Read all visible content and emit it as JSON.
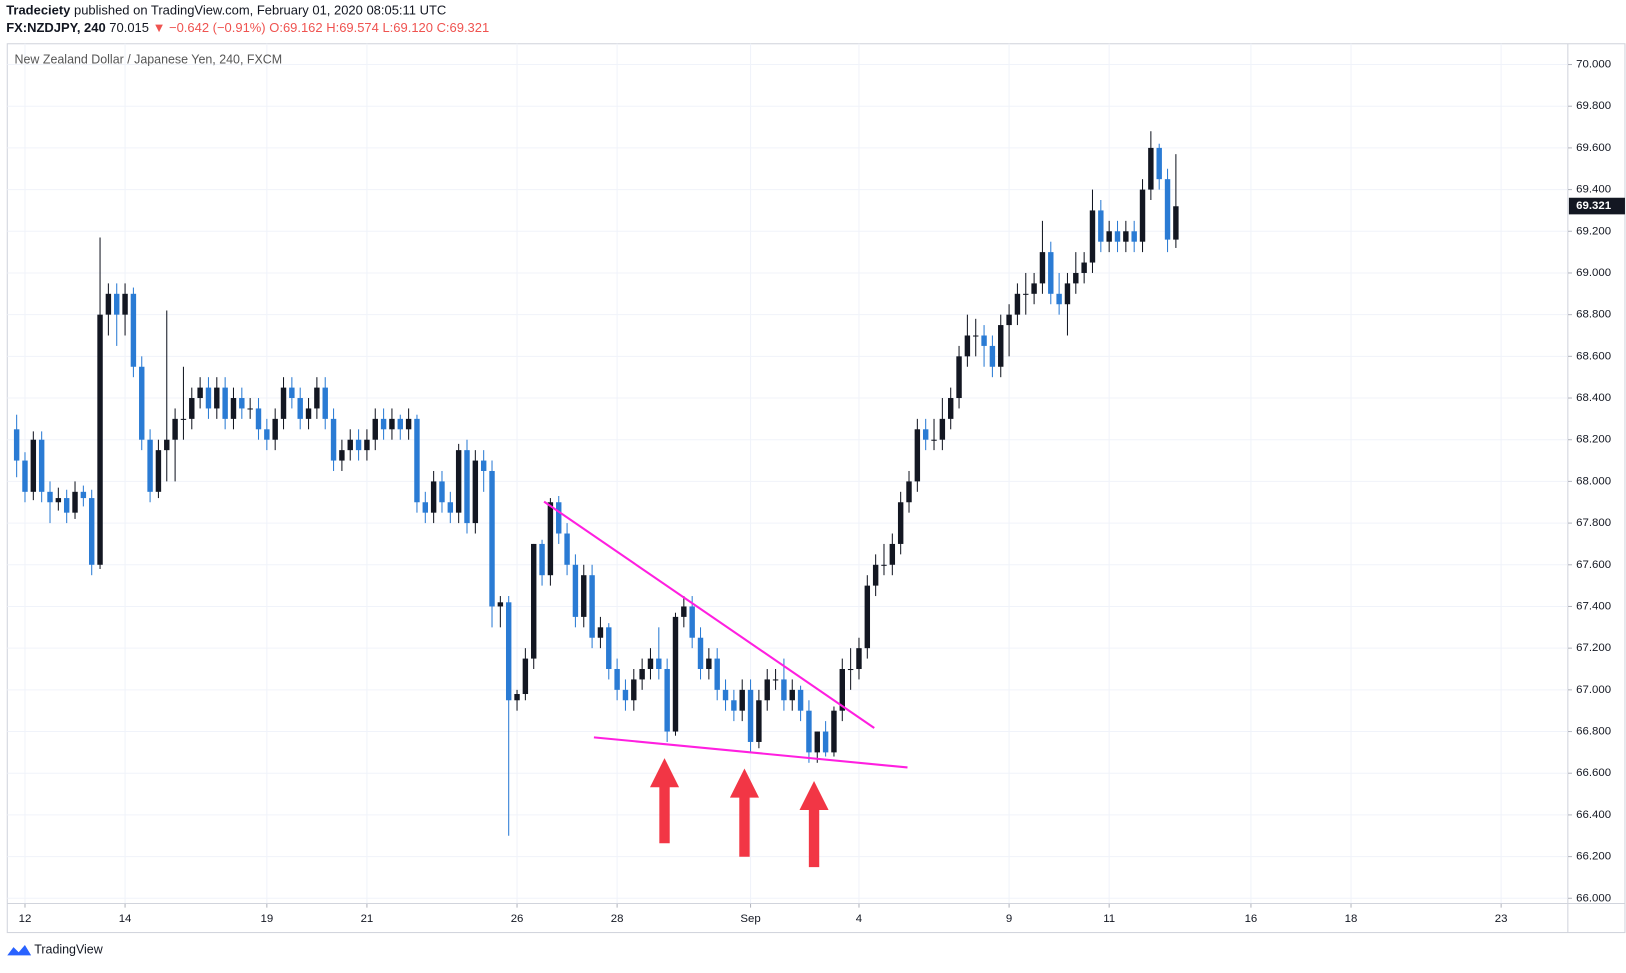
{
  "header": {
    "publisher": "Tradeciety",
    "published": "published on TradingView.com, February 01, 2020 08:05:11 UTC",
    "symbol": "FX:NZDJPY, 240",
    "price": "70.015",
    "change": "▼ −0.642 (−0.91%)",
    "o": "O:69.162",
    "h": "H:69.574",
    "l": "L:69.120",
    "c": "C:69.321"
  },
  "footer": "TradingView",
  "chart_data": {
    "type": "candlestick",
    "title": "New Zealand Dollar / Japanese Yen, 240, FXCM",
    "up_color": "#131722",
    "down_color": "#2a7bd4",
    "grid": true,
    "last_price": 69.321,
    "xlim": [
      -1,
      186
    ],
    "xticks": [
      {
        "value": 1,
        "label": "12"
      },
      {
        "value": 13,
        "label": "14"
      },
      {
        "value": 30,
        "label": "19"
      },
      {
        "value": 42,
        "label": "21"
      },
      {
        "value": 60,
        "label": "26"
      },
      {
        "value": 72,
        "label": "28"
      },
      {
        "value": 88,
        "label": "Sep"
      },
      {
        "value": 101,
        "label": "4"
      },
      {
        "value": 119,
        "label": "9"
      },
      {
        "value": 131,
        "label": "11"
      },
      {
        "value": 148,
        "label": "16"
      },
      {
        "value": 160,
        "label": "18"
      },
      {
        "value": 178,
        "label": "23"
      }
    ],
    "ylim": [
      66,
      70
    ],
    "yticks": [
      {
        "value": 66,
        "label": "66.000"
      },
      {
        "value": 66.2,
        "label": "66.200"
      },
      {
        "value": 66.4,
        "label": "66.400"
      },
      {
        "value": 66.6,
        "label": "66.600"
      },
      {
        "value": 66.8,
        "label": "66.800"
      },
      {
        "value": 67,
        "label": "67.000"
      },
      {
        "value": 67.2,
        "label": "67.200"
      },
      {
        "value": 67.4,
        "label": "67.400"
      },
      {
        "value": 67.6,
        "label": "67.600"
      },
      {
        "value": 67.8,
        "label": "67.800"
      },
      {
        "value": 68,
        "label": "68.000"
      },
      {
        "value": 68.2,
        "label": "68.200"
      },
      {
        "value": 68.4,
        "label": "68.400"
      },
      {
        "value": 68.6,
        "label": "68.600"
      },
      {
        "value": 68.8,
        "label": "68.800"
      },
      {
        "value": 69,
        "label": "69.000"
      },
      {
        "value": 69.2,
        "label": "69.200"
      },
      {
        "value": 69.4,
        "label": "69.400"
      },
      {
        "value": 69.6,
        "label": "69.600"
      },
      {
        "value": 69.8,
        "label": "69.800"
      },
      {
        "value": 70,
        "label": "70.000"
      }
    ],
    "ohlc": [
      [
        68.25,
        68.32,
        68.02,
        68.1
      ],
      [
        68.1,
        68.14,
        67.9,
        67.95
      ],
      [
        67.95,
        68.24,
        67.91,
        68.2
      ],
      [
        68.2,
        68.24,
        67.9,
        67.95
      ],
      [
        67.95,
        68.0,
        67.8,
        67.9
      ],
      [
        67.9,
        67.97,
        67.86,
        67.92
      ],
      [
        67.92,
        67.96,
        67.8,
        67.85
      ],
      [
        67.85,
        68.0,
        67.82,
        67.95
      ],
      [
        67.95,
        67.98,
        67.88,
        67.92
      ],
      [
        67.92,
        67.96,
        67.55,
        67.6
      ],
      [
        67.6,
        69.17,
        67.58,
        68.8
      ],
      [
        68.8,
        68.95,
        68.7,
        68.9
      ],
      [
        68.9,
        68.95,
        68.65,
        68.8
      ],
      [
        68.8,
        68.95,
        68.7,
        68.9
      ],
      [
        68.9,
        68.93,
        68.5,
        68.55
      ],
      [
        68.55,
        68.6,
        68.15,
        68.2
      ],
      [
        68.2,
        68.25,
        67.9,
        67.95
      ],
      [
        67.95,
        68.2,
        67.92,
        68.15
      ],
      [
        68.15,
        68.82,
        68.0,
        68.2
      ],
      [
        68.2,
        68.35,
        68.0,
        68.3
      ],
      [
        68.3,
        68.55,
        68.2,
        68.3
      ],
      [
        68.3,
        68.45,
        68.25,
        68.4
      ],
      [
        68.4,
        68.5,
        68.35,
        68.45
      ],
      [
        68.45,
        68.5,
        68.3,
        68.35
      ],
      [
        68.35,
        68.5,
        68.3,
        68.45
      ],
      [
        68.45,
        68.5,
        68.25,
        68.3
      ],
      [
        68.3,
        68.45,
        68.25,
        68.4
      ],
      [
        68.4,
        68.45,
        68.3,
        68.35
      ],
      [
        68.35,
        68.4,
        68.3,
        68.35
      ],
      [
        68.35,
        68.4,
        68.2,
        68.25
      ],
      [
        68.25,
        68.3,
        68.15,
        68.2
      ],
      [
        68.2,
        68.35,
        68.15,
        68.3
      ],
      [
        68.3,
        68.5,
        68.25,
        68.45
      ],
      [
        68.45,
        68.5,
        68.35,
        68.4
      ],
      [
        68.4,
        68.45,
        68.25,
        68.3
      ],
      [
        68.3,
        68.4,
        68.25,
        68.35
      ],
      [
        68.35,
        68.5,
        68.3,
        68.45
      ],
      [
        68.45,
        68.5,
        68.25,
        68.3
      ],
      [
        68.3,
        68.35,
        68.05,
        68.1
      ],
      [
        68.1,
        68.2,
        68.05,
        68.15
      ],
      [
        68.15,
        68.25,
        68.1,
        68.2
      ],
      [
        68.2,
        68.25,
        68.1,
        68.15
      ],
      [
        68.15,
        68.25,
        68.1,
        68.2
      ],
      [
        68.2,
        68.35,
        68.15,
        68.3
      ],
      [
        68.3,
        68.35,
        68.2,
        68.25
      ],
      [
        68.25,
        68.35,
        68.2,
        68.3
      ],
      [
        68.3,
        68.32,
        68.2,
        68.25
      ],
      [
        68.25,
        68.35,
        68.2,
        68.3
      ],
      [
        68.3,
        68.32,
        67.85,
        67.9
      ],
      [
        67.9,
        67.95,
        67.8,
        67.85
      ],
      [
        67.85,
        68.05,
        67.8,
        68.0
      ],
      [
        68.0,
        68.05,
        67.85,
        67.9
      ],
      [
        67.9,
        67.95,
        67.8,
        67.85
      ],
      [
        67.85,
        68.18,
        67.8,
        68.15
      ],
      [
        68.15,
        68.2,
        67.75,
        67.8
      ],
      [
        67.8,
        68.15,
        67.75,
        68.1
      ],
      [
        68.1,
        68.15,
        67.95,
        68.05
      ],
      [
        68.05,
        68.1,
        67.3,
        67.4
      ],
      [
        67.4,
        67.45,
        67.3,
        67.42
      ],
      [
        67.42,
        67.45,
        66.3,
        66.95
      ],
      [
        66.95,
        67.0,
        66.9,
        66.98
      ],
      [
        66.98,
        67.2,
        66.95,
        67.15
      ],
      [
        67.15,
        67.7,
        67.1,
        67.7
      ],
      [
        67.7,
        67.72,
        67.5,
        67.55
      ],
      [
        67.55,
        67.92,
        67.5,
        67.9
      ],
      [
        67.9,
        67.93,
        67.7,
        67.75
      ],
      [
        67.75,
        67.8,
        67.55,
        67.6
      ],
      [
        67.6,
        67.65,
        67.3,
        67.35
      ],
      [
        67.35,
        67.6,
        67.3,
        67.55
      ],
      [
        67.55,
        67.6,
        67.2,
        67.25
      ],
      [
        67.25,
        67.35,
        67.2,
        67.3
      ],
      [
        67.3,
        67.32,
        67.05,
        67.1
      ],
      [
        67.1,
        67.15,
        66.95,
        67.0
      ],
      [
        67.0,
        67.05,
        66.9,
        66.95
      ],
      [
        66.95,
        67.1,
        66.9,
        67.05
      ],
      [
        67.05,
        67.15,
        67.0,
        67.1
      ],
      [
        67.1,
        67.2,
        67.05,
        67.15
      ],
      [
        67.15,
        67.3,
        67.05,
        67.1
      ],
      [
        67.1,
        67.15,
        66.75,
        66.8
      ],
      [
        66.8,
        67.37,
        66.78,
        67.35
      ],
      [
        67.35,
        67.45,
        67.3,
        67.4
      ],
      [
        67.4,
        67.45,
        67.2,
        67.25
      ],
      [
        67.25,
        67.3,
        67.05,
        67.1
      ],
      [
        67.1,
        67.2,
        67.05,
        67.15
      ],
      [
        67.15,
        67.2,
        66.95,
        67.0
      ],
      [
        67.0,
        67.05,
        66.9,
        66.95
      ],
      [
        66.95,
        67.0,
        66.85,
        66.9
      ],
      [
        66.9,
        67.05,
        66.85,
        67.0
      ],
      [
        67.0,
        67.05,
        66.7,
        66.75
      ],
      [
        66.75,
        67.0,
        66.72,
        66.95
      ],
      [
        66.95,
        67.1,
        66.9,
        67.05
      ],
      [
        67.05,
        67.1,
        67.0,
        67.05
      ],
      [
        67.05,
        67.15,
        66.9,
        66.95
      ],
      [
        66.95,
        67.05,
        66.9,
        67.0
      ],
      [
        67.0,
        67.02,
        66.85,
        66.9
      ],
      [
        66.9,
        66.95,
        66.65,
        66.7
      ],
      [
        66.7,
        66.8,
        66.65,
        66.8
      ],
      [
        66.8,
        66.85,
        66.68,
        66.7
      ],
      [
        66.7,
        66.92,
        66.68,
        66.9
      ],
      [
        66.9,
        67.15,
        66.85,
        67.1
      ],
      [
        67.1,
        67.2,
        67.0,
        67.1
      ],
      [
        67.1,
        67.25,
        67.05,
        67.2
      ],
      [
        67.2,
        67.55,
        67.15,
        67.5
      ],
      [
        67.5,
        67.65,
        67.45,
        67.6
      ],
      [
        67.6,
        67.7,
        67.55,
        67.6
      ],
      [
        67.6,
        67.75,
        67.55,
        67.7
      ],
      [
        67.7,
        67.95,
        67.65,
        67.9
      ],
      [
        67.9,
        68.05,
        67.85,
        68.0
      ],
      [
        68.0,
        68.3,
        67.95,
        68.25
      ],
      [
        68.25,
        68.3,
        68.15,
        68.2
      ],
      [
        68.2,
        68.3,
        68.15,
        68.2
      ],
      [
        68.2,
        68.4,
        68.15,
        68.3
      ],
      [
        68.3,
        68.45,
        68.25,
        68.4
      ],
      [
        68.4,
        68.65,
        68.35,
        68.6
      ],
      [
        68.6,
        68.8,
        68.55,
        68.7
      ],
      [
        68.7,
        68.78,
        68.6,
        68.7
      ],
      [
        68.7,
        68.75,
        68.55,
        68.65
      ],
      [
        68.65,
        68.7,
        68.5,
        68.55
      ],
      [
        68.55,
        68.8,
        68.5,
        68.75
      ],
      [
        68.75,
        68.85,
        68.6,
        68.8
      ],
      [
        68.8,
        68.95,
        68.75,
        68.9
      ],
      [
        68.9,
        69.0,
        68.8,
        68.9
      ],
      [
        68.9,
        69.0,
        68.85,
        68.95
      ],
      [
        68.95,
        69.25,
        68.9,
        69.1
      ],
      [
        69.1,
        69.15,
        68.85,
        68.9
      ],
      [
        68.9,
        69.0,
        68.8,
        68.85
      ],
      [
        68.85,
        69.0,
        68.7,
        68.95
      ],
      [
        68.95,
        69.1,
        68.9,
        69.0
      ],
      [
        69.0,
        69.1,
        68.95,
        69.05
      ],
      [
        69.05,
        69.4,
        69.0,
        69.3
      ],
      [
        69.3,
        69.35,
        69.1,
        69.15
      ],
      [
        69.15,
        69.25,
        69.1,
        69.2
      ],
      [
        69.2,
        69.25,
        69.1,
        69.15
      ],
      [
        69.15,
        69.25,
        69.1,
        69.2
      ],
      [
        69.2,
        69.25,
        69.1,
        69.15
      ],
      [
        69.15,
        69.45,
        69.1,
        69.4
      ],
      [
        69.4,
        69.68,
        69.35,
        69.6
      ],
      [
        69.6,
        69.62,
        69.4,
        69.45
      ],
      [
        69.45,
        69.5,
        69.1,
        69.16
      ],
      [
        69.16,
        69.57,
        69.12,
        69.32
      ]
    ]
  }
}
